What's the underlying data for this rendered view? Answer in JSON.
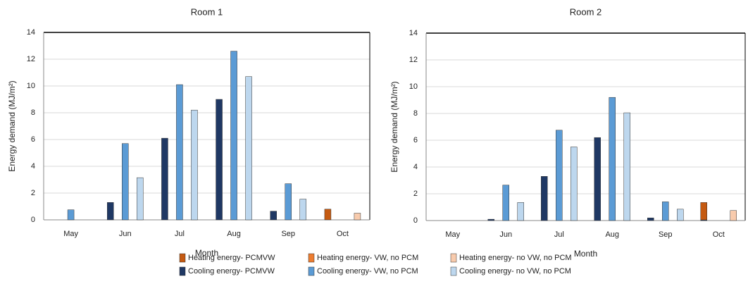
{
  "chart_data": [
    {
      "type": "bar",
      "title": "Room 1",
      "x_label": "Month",
      "y_label": "Energy demand (MJ/m²)",
      "categories": [
        "May",
        "Jun",
        "Jul",
        "Aug",
        "Sep",
        "Oct"
      ],
      "ylim": [
        0,
        14
      ],
      "yticks": [
        0,
        2,
        4,
        6,
        8,
        10,
        12,
        14
      ],
      "grid": true,
      "series": [
        {
          "name": "Heating energy- PCMVW",
          "color": "#c55a11",
          "values": [
            0,
            0,
            0,
            0,
            0,
            0.8
          ]
        },
        {
          "name": "Heating energy- VW, no PCM",
          "color": "#ed7d31",
          "values": [
            0,
            0,
            0,
            0,
            0,
            0
          ]
        },
        {
          "name": "Heating energy- no VW, no PCM",
          "color": "#f8cbad",
          "values": [
            0,
            0,
            0,
            0,
            0,
            0.5
          ]
        },
        {
          "name": "Cooling energy- PCMVW",
          "color": "#1f3864",
          "values": [
            0,
            1.3,
            6.1,
            9.0,
            0.65,
            0
          ]
        },
        {
          "name": "Cooling energy- VW, no PCM",
          "color": "#5b9bd5",
          "values": [
            0.75,
            5.7,
            10.1,
            12.6,
            2.7,
            0
          ]
        },
        {
          "name": "Cooling energy- no VW, no PCM",
          "color": "#bdd7ee",
          "values": [
            0,
            3.15,
            8.2,
            10.7,
            1.55,
            0
          ]
        }
      ]
    },
    {
      "type": "bar",
      "title": "Room 2",
      "x_label": "Month",
      "y_label": "Energy demand (MJ/m²)",
      "categories": [
        "May",
        "Jun",
        "Jul",
        "Aug",
        "Sep",
        "Oct"
      ],
      "ylim": [
        0,
        14
      ],
      "yticks": [
        0,
        2,
        4,
        6,
        8,
        10,
        12,
        14
      ],
      "grid": true,
      "series": [
        {
          "color": "#c55a11",
          "values": [
            0,
            0,
            0,
            0,
            0,
            1.35
          ]
        },
        {
          "color": "#ed7d31",
          "values": [
            0,
            0,
            0,
            0,
            0,
            0
          ]
        },
        {
          "color": "#f8cbad",
          "values": [
            0,
            0,
            0,
            0,
            0,
            0.75
          ]
        },
        {
          "color": "#1f3864",
          "values": [
            0,
            0.1,
            3.3,
            6.2,
            0.2,
            0.05
          ]
        },
        {
          "color": "#5b9bd5",
          "values": [
            0,
            2.65,
            6.75,
            9.2,
            1.4,
            0
          ]
        },
        {
          "color": "#bdd7ee",
          "values": [
            0,
            1.35,
            5.5,
            8.05,
            0.85,
            0
          ]
        }
      ]
    }
  ]
}
